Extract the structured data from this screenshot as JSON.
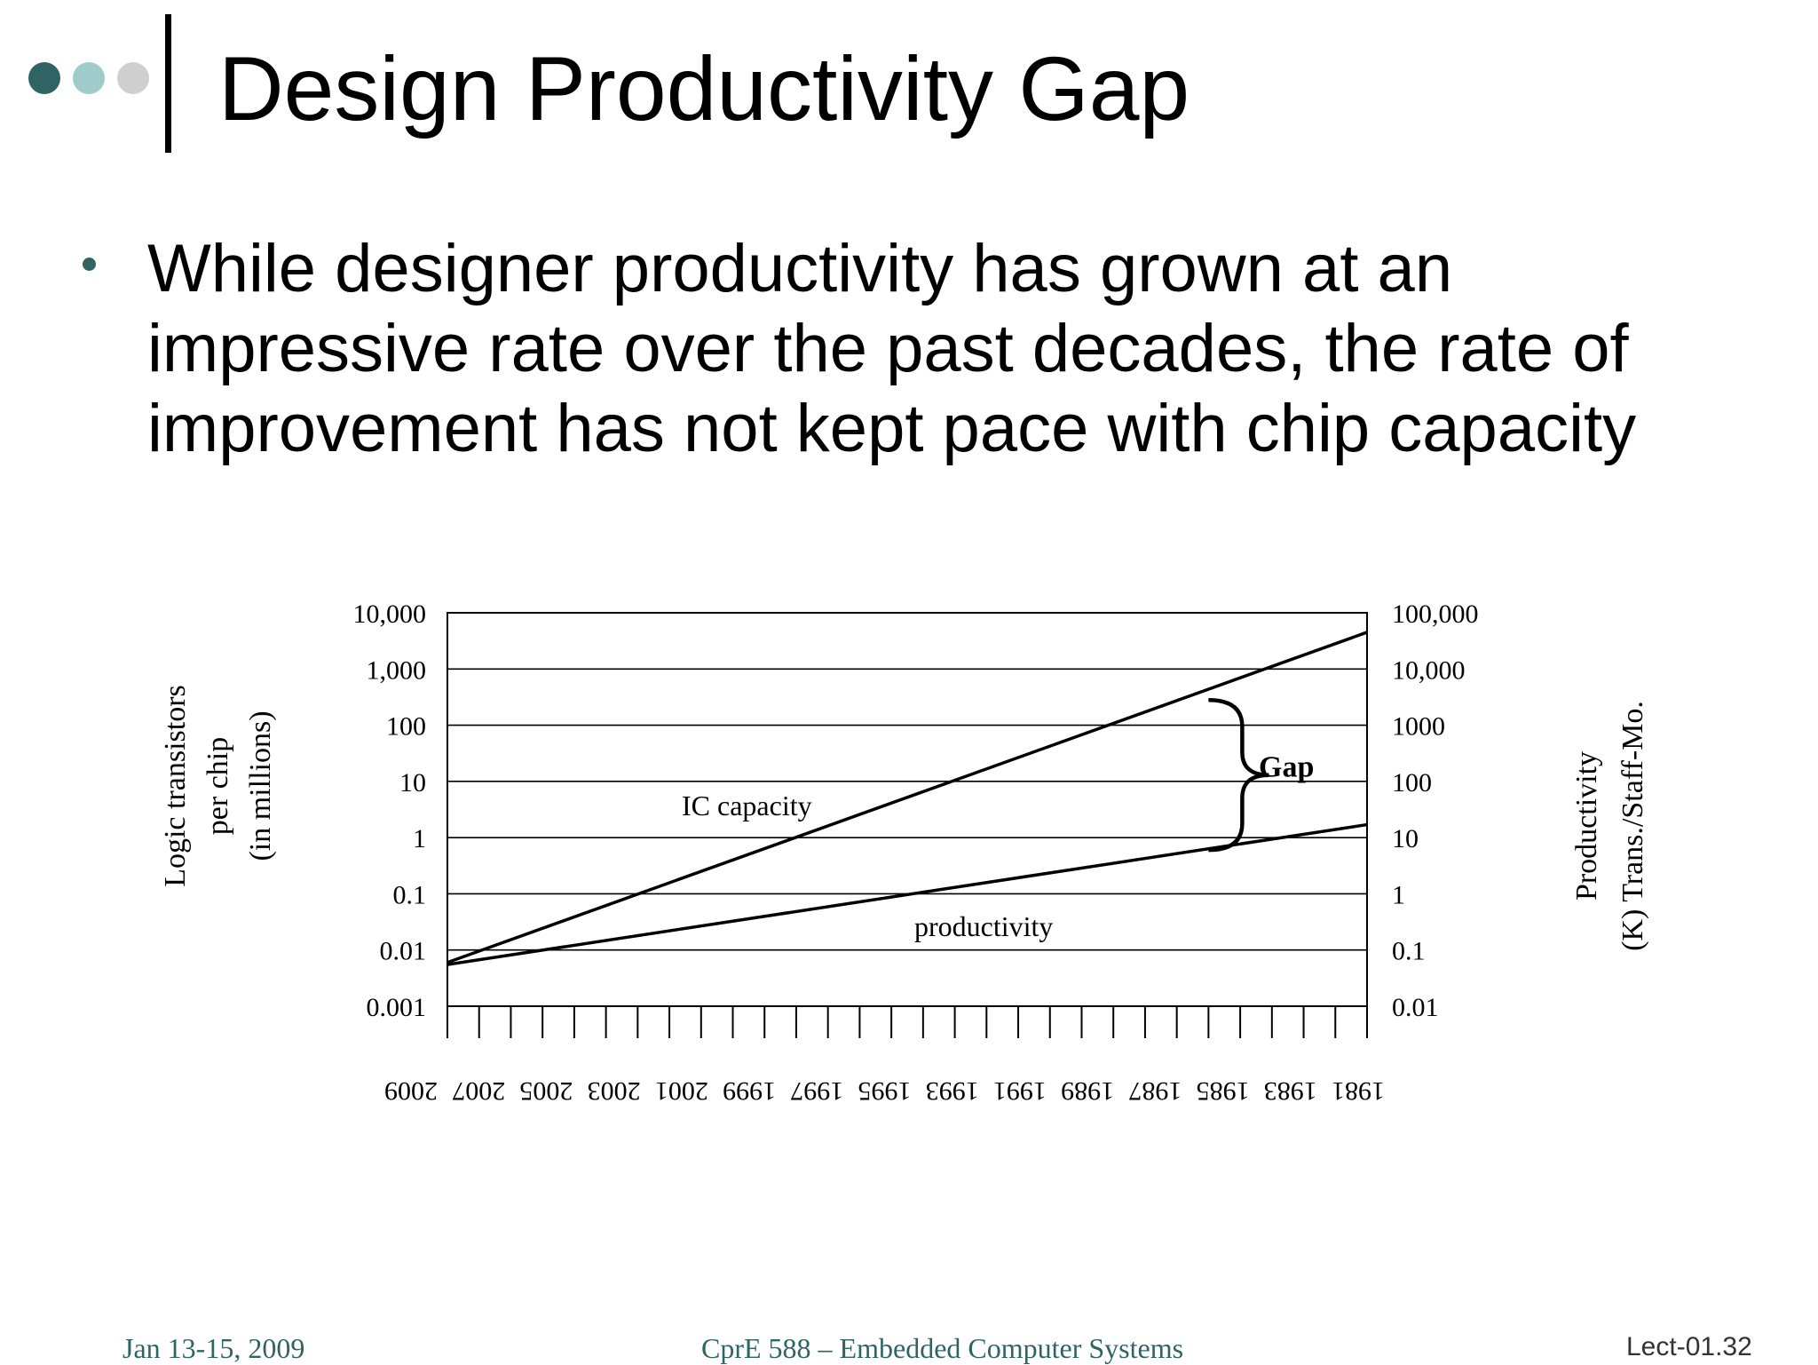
{
  "slide": {
    "title": "Design Productivity Gap",
    "bullet": [
      "While designer productivity has grown at an",
      "impressive rate over the past decades, the rate of",
      "improvement has not kept pace with chip capacity"
    ],
    "dots": {
      "colors": [
        "#2f6465",
        "#9fcccb",
        "#cfcfcf"
      ]
    }
  },
  "chart_data": {
    "type": "line",
    "scale": "log",
    "x_ticks": [
      "1981",
      "1983",
      "1985",
      "1987",
      "1989",
      "1991",
      "1993",
      "1995",
      "1997",
      "1999",
      "2001",
      "2003",
      "2005",
      "2007",
      "2009"
    ],
    "xlim": [
      1981,
      2010
    ],
    "y_left": {
      "label_lines": [
        "Logic transistors",
        "per chip",
        "(in millions)"
      ],
      "ticks": [
        "10,000",
        "1,000",
        "100",
        "10",
        "1",
        "0.1",
        "0.01",
        "0.001"
      ],
      "range": [
        0.001,
        10000
      ]
    },
    "y_right": {
      "label_lines": [
        "Productivity",
        "(K) Trans./Staff-Mo."
      ],
      "ticks": [
        "100,000",
        "10,000",
        "1000",
        "100",
        "10",
        "1",
        "0.1",
        "0.01"
      ],
      "range": [
        0.01,
        100000
      ]
    },
    "series": [
      {
        "name": "IC capacity",
        "axis": "left",
        "x": [
          1981,
          2010
        ],
        "y": [
          0.006,
          4500
        ]
      },
      {
        "name": "productivity",
        "axis": "left",
        "x": [
          1981,
          2010
        ],
        "y": [
          0.0055,
          1.7
        ]
      }
    ],
    "annotations": {
      "gap_label": "Gap",
      "gap_x": 2005,
      "gap_y_top": 280,
      "gap_y_bottom": 0.6
    },
    "grid": true
  },
  "footer": {
    "date": "Jan 13-15, 2009",
    "course": "CprE 588 – Embedded Computer Systems",
    "slide_number": "Lect-01.32"
  }
}
